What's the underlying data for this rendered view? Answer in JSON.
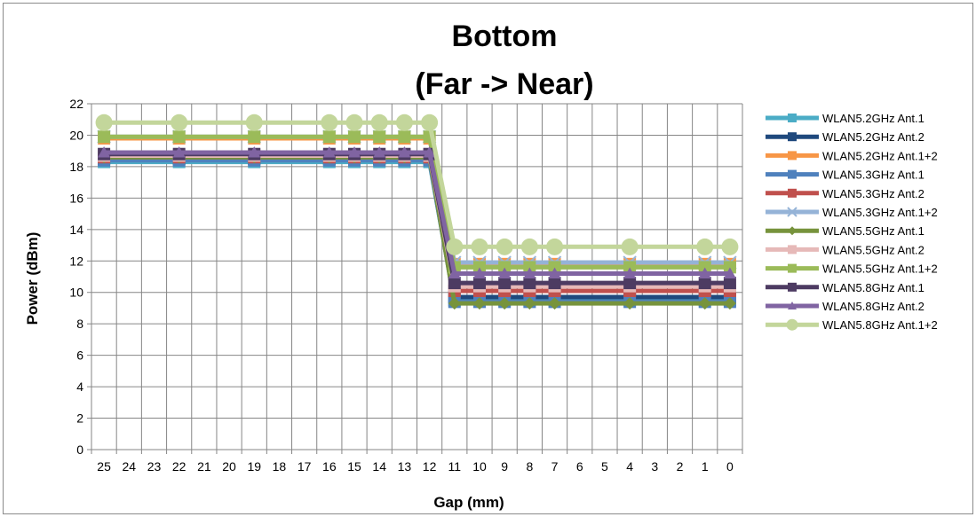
{
  "chart_data": {
    "type": "line",
    "title_line1": "Bottom",
    "title_line2": "(Far -> Near)",
    "xlabel": "Gap (mm)",
    "ylabel": "Power (dBm)",
    "ylim": [
      0,
      22
    ],
    "y_ticks": [
      "0",
      "2",
      "4",
      "6",
      "8",
      "10",
      "12",
      "14",
      "16",
      "18",
      "20",
      "22"
    ],
    "x_categories": [
      "25",
      "24",
      "23",
      "22",
      "21",
      "20",
      "19",
      "18",
      "17",
      "16",
      "15",
      "14",
      "13",
      "12",
      "11",
      "10",
      "9",
      "8",
      "7",
      "6",
      "5",
      "4",
      "3",
      "2",
      "1",
      "0"
    ],
    "x_reversed": true,
    "grid": true,
    "legend_position": "right",
    "measured_gaps": [
      25,
      22,
      19,
      16,
      15,
      14,
      13,
      12,
      11,
      10,
      9,
      8,
      7,
      4,
      1,
      0
    ],
    "series": [
      {
        "name": "WLAN5.2GHz Ant.1",
        "color": "#4bacc6",
        "marker": "square",
        "values": [
          18.3,
          18.3,
          18.3,
          18.3,
          18.3,
          18.3,
          18.3,
          18.3,
          9.5,
          9.5,
          9.5,
          9.5,
          9.5,
          9.5,
          9.5,
          9.5
        ]
      },
      {
        "name": "WLAN5.2GHz Ant.2",
        "color": "#1f497d",
        "marker": "square",
        "values": [
          18.5,
          18.5,
          18.5,
          18.5,
          18.5,
          18.5,
          18.5,
          18.5,
          9.7,
          9.7,
          9.7,
          9.7,
          9.7,
          9.7,
          9.7,
          9.7
        ]
      },
      {
        "name": "WLAN5.2GHz Ant.1+2",
        "color": "#f79646",
        "marker": "square",
        "values": [
          19.8,
          19.8,
          19.8,
          19.8,
          19.8,
          19.8,
          19.8,
          19.8,
          11.8,
          11.8,
          11.8,
          11.8,
          11.8,
          11.8,
          11.8,
          11.8
        ]
      },
      {
        "name": "WLAN5.3GHz Ant.1",
        "color": "#4f81bd",
        "marker": "square",
        "values": [
          18.4,
          18.4,
          18.4,
          18.4,
          18.4,
          18.4,
          18.4,
          18.4,
          9.4,
          9.4,
          9.4,
          9.4,
          9.4,
          9.4,
          9.4,
          9.4
        ]
      },
      {
        "name": "WLAN5.3GHz Ant.2",
        "color": "#c0504d",
        "marker": "square",
        "values": [
          18.6,
          18.6,
          18.6,
          18.6,
          18.6,
          18.6,
          18.6,
          18.6,
          10.1,
          10.1,
          10.1,
          10.1,
          10.1,
          10.1,
          10.1,
          10.1
        ]
      },
      {
        "name": "WLAN5.3GHz Ant.1+2",
        "color": "#95b3d7",
        "marker": "x",
        "values": [
          19.9,
          19.9,
          19.9,
          19.9,
          19.9,
          19.9,
          19.9,
          19.9,
          11.9,
          11.9,
          11.9,
          11.9,
          11.9,
          11.9,
          11.9,
          11.9
        ]
      },
      {
        "name": "WLAN5.5GHz Ant.1",
        "color": "#77933c",
        "marker": "diamond",
        "values": [
          18.6,
          18.6,
          18.6,
          18.6,
          18.6,
          18.6,
          18.6,
          18.6,
          9.3,
          9.3,
          9.3,
          9.3,
          9.3,
          9.3,
          9.3,
          9.3
        ]
      },
      {
        "name": "WLAN5.5GHz Ant.2",
        "color": "#e6b9b8",
        "marker": "square",
        "values": [
          18.7,
          18.7,
          18.7,
          18.7,
          18.7,
          18.7,
          18.7,
          18.7,
          10.4,
          10.4,
          10.4,
          10.4,
          10.4,
          10.4,
          10.4,
          10.4
        ]
      },
      {
        "name": "WLAN5.5GHz Ant.1+2",
        "color": "#9bbb59",
        "marker": "square",
        "values": [
          19.9,
          19.9,
          19.9,
          19.9,
          19.9,
          19.9,
          19.9,
          19.9,
          11.6,
          11.6,
          11.6,
          11.6,
          11.6,
          11.6,
          11.6,
          11.6
        ]
      },
      {
        "name": "WLAN5.8GHz Ant.1",
        "color": "#4d3b62",
        "marker": "square",
        "values": [
          18.8,
          18.8,
          18.8,
          18.8,
          18.8,
          18.8,
          18.8,
          18.8,
          10.6,
          10.6,
          10.6,
          10.6,
          10.6,
          10.6,
          10.6,
          10.6
        ]
      },
      {
        "name": "WLAN5.8GHz Ant.2",
        "color": "#8064a2",
        "marker": "triangle",
        "values": [
          18.9,
          18.9,
          18.9,
          18.9,
          18.9,
          18.9,
          18.9,
          18.9,
          11.2,
          11.2,
          11.2,
          11.2,
          11.2,
          11.2,
          11.2,
          11.2
        ]
      },
      {
        "name": "WLAN5.8GHz Ant.1+2",
        "color": "#c3d69b",
        "marker": "circle",
        "values": [
          20.8,
          20.8,
          20.8,
          20.8,
          20.8,
          20.8,
          20.8,
          20.8,
          12.9,
          12.9,
          12.9,
          12.9,
          12.9,
          12.9,
          12.9,
          12.9
        ]
      }
    ]
  }
}
